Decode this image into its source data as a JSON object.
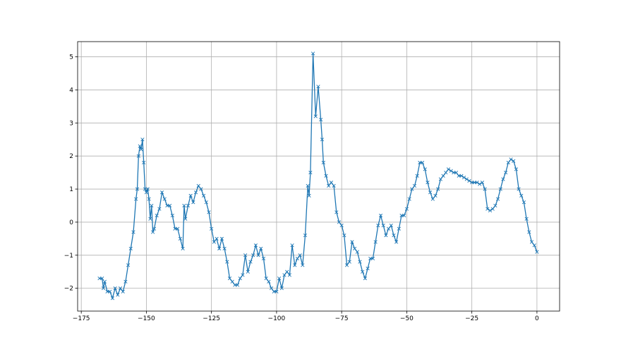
{
  "chart_data": {
    "type": "line",
    "title": "",
    "xlabel": "",
    "ylabel": "",
    "xlim": [
      -176.4,
      8.7
    ],
    "ylim": [
      -2.69,
      5.46
    ],
    "grid": true,
    "marker": "x",
    "color": "#1f77b4",
    "xticks": [
      -175,
      -150,
      -125,
      -100,
      -75,
      -50,
      -25,
      0
    ],
    "yticks": [
      -2,
      -1,
      0,
      1,
      2,
      3,
      4,
      5
    ],
    "series": [
      {
        "x": [
          -168,
          -167,
          -166.5,
          -166,
          -165,
          -164,
          -163,
          -162,
          -161,
          -160,
          -159,
          -158,
          -157,
          -156,
          -155,
          -154,
          -153.5,
          -153,
          -152.5,
          -152,
          -151.5,
          -151,
          -150.5,
          -150,
          -149.5,
          -149,
          -148.5,
          -148,
          -147.5,
          -147,
          -146,
          -145,
          -144,
          -143,
          -142,
          -141,
          -140,
          -139,
          -138,
          -137,
          -136,
          -135.5,
          -135,
          -134,
          -133,
          -132,
          -131,
          -130,
          -129,
          -128,
          -127,
          -126,
          -125,
          -124,
          -123,
          -122,
          -121,
          -120,
          -119,
          -118,
          -117,
          -116,
          -115,
          -114,
          -113,
          -112,
          -111,
          -110,
          -109,
          -108,
          -107,
          -106,
          -105,
          -104,
          -103,
          -102,
          -101,
          -100,
          -99,
          -98,
          -97,
          -96,
          -95,
          -94,
          -93,
          -92,
          -91,
          -90,
          -89,
          -88,
          -87.5,
          -87,
          -86,
          -85,
          -84,
          -83,
          -82.5,
          -82,
          -81,
          -80,
          -79,
          -78,
          -77,
          -76,
          -75,
          -74,
          -73,
          -72,
          -71,
          -70,
          -69,
          -68,
          -67,
          -66,
          -65,
          -64,
          -63,
          -62,
          -61,
          -60,
          -59,
          -58,
          -57,
          -56,
          -55,
          -54,
          -53,
          -52,
          -51,
          -50,
          -49,
          -48,
          -47,
          -46,
          -45,
          -44,
          -43,
          -42,
          -41,
          -40,
          -39,
          -38,
          -37,
          -36,
          -35,
          -34,
          -33,
          -32,
          -31,
          -30,
          -29,
          -28,
          -27,
          -26,
          -25,
          -24,
          -23,
          -22,
          -21,
          -20,
          -19,
          -18,
          -17,
          -16,
          -15,
          -14,
          -13,
          -12,
          -11,
          -10,
          -9,
          -8,
          -7,
          -6,
          -5,
          -4,
          -3,
          -2,
          -1,
          0
        ],
        "y": [
          -1.7,
          -1.7,
          -2.0,
          -1.8,
          -2.1,
          -2.1,
          -2.3,
          -2.0,
          -2.2,
          -2.0,
          -2.1,
          -1.8,
          -1.3,
          -0.8,
          -0.3,
          0.7,
          1.0,
          2.0,
          2.3,
          2.2,
          2.5,
          1.8,
          1.0,
          0.9,
          1.0,
          0.7,
          0.1,
          0.5,
          -0.3,
          -0.2,
          0.2,
          0.4,
          0.9,
          0.7,
          0.5,
          0.5,
          0.2,
          -0.2,
          -0.2,
          -0.5,
          -0.8,
          0.5,
          0.1,
          0.5,
          0.8,
          0.6,
          0.9,
          1.1,
          1.0,
          0.8,
          0.6,
          0.3,
          -0.2,
          -0.6,
          -0.5,
          -0.8,
          -0.5,
          -0.8,
          -1.2,
          -1.7,
          -1.8,
          -1.9,
          -1.9,
          -1.7,
          -1.6,
          -1.0,
          -1.5,
          -1.2,
          -1.0,
          -0.7,
          -1.0,
          -0.8,
          -1.1,
          -1.7,
          -1.8,
          -2.0,
          -2.1,
          -2.1,
          -1.7,
          -2.0,
          -1.6,
          -1.5,
          -1.6,
          -0.7,
          -1.3,
          -1.1,
          -1.0,
          -1.3,
          -0.4,
          1.1,
          0.8,
          1.5,
          5.1,
          3.2,
          4.1,
          3.1,
          2.5,
          1.8,
          1.4,
          1.1,
          1.2,
          1.1,
          0.3,
          0.0,
          -0.1,
          -0.4,
          -1.3,
          -1.2,
          -0.6,
          -0.8,
          -0.9,
          -1.2,
          -1.5,
          -1.7,
          -1.4,
          -1.1,
          -1.1,
          -0.6,
          -0.1,
          0.2,
          -0.1,
          -0.4,
          -0.2,
          -0.1,
          -0.4,
          -0.6,
          -0.2,
          0.2,
          0.2,
          0.4,
          0.7,
          1.0,
          1.1,
          1.4,
          1.8,
          1.8,
          1.6,
          1.2,
          0.9,
          0.7,
          0.8,
          1.0,
          1.3,
          1.4,
          1.5,
          1.6,
          1.55,
          1.5,
          1.5,
          1.4,
          1.4,
          1.35,
          1.3,
          1.25,
          1.2,
          1.2,
          1.2,
          1.15,
          1.2,
          1.0,
          0.4,
          0.35,
          0.4,
          0.5,
          0.7,
          1.0,
          1.3,
          1.5,
          1.8,
          1.9,
          1.85,
          1.6,
          1.0,
          0.8,
          0.6,
          0.1,
          -0.3,
          -0.6,
          -0.7,
          -0.9
        ]
      }
    ]
  }
}
